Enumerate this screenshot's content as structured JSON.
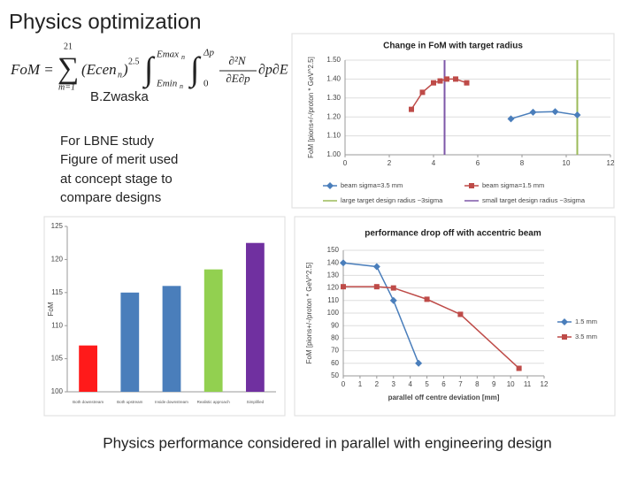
{
  "slide": {
    "title": "Physics optimization",
    "formula": {
      "lhs": "FoM =",
      "sum": "∑",
      "sum_upper": "21",
      "sum_lower": "m=1",
      "term": "(Ecen",
      "term_sub": "n",
      "term_close": ")",
      "exponent": "2.5",
      "integral1": "∫",
      "int1_upper": "Emax",
      "int1_upper_sub": "n",
      "int1_lower": "Emin",
      "int1_lower_sub": "n",
      "integral2": "∫",
      "int2_upper": "Δp",
      "int2_lower": "0",
      "numerator": "∂²N",
      "denominator": "∂E∂p",
      "differential": "∂p∂E"
    },
    "author": "B.Zwaska",
    "note": [
      "For LBNE study",
      "Figure of merit used",
      "at concept stage to",
      "compare designs"
    ],
    "footer": "Physics performance considered in parallel with engineering design"
  },
  "chart_data": [
    {
      "type": "line",
      "title": "Change in FoM with target radius",
      "y_label": "FoM [pions+/-/proton * GeV^2.5]",
      "xlim": [
        0,
        12
      ],
      "xticks": [
        0,
        2,
        4,
        6,
        8,
        10,
        12
      ],
      "ylim": [
        1,
        1.5
      ],
      "yticks": [
        {
          "value": 1,
          "label": "1.00"
        },
        {
          "value": 1.1,
          "label": "1.10"
        },
        {
          "value": 1.2,
          "label": "1.20"
        },
        {
          "value": 1.3,
          "label": "1.30"
        },
        {
          "value": 1.4,
          "label": "1.40"
        },
        {
          "value": 1.5,
          "label": "1.50"
        }
      ],
      "grid": true,
      "legend": "bottom",
      "series": [
        {
          "name": "beam sigma=3.5 mm",
          "color": "#4a7ebb",
          "marker": "diamond",
          "x": [
            7.5,
            8.5,
            9.5,
            10.5
          ],
          "values": [
            1.19,
            1.225,
            1.228,
            1.21
          ]
        },
        {
          "name": "beam sigma=1.5 mm",
          "color": "#be4b48",
          "marker": "square",
          "x": [
            3,
            3.5,
            4,
            4.3,
            4.6,
            5,
            5.5
          ],
          "values": [
            1.24,
            1.33,
            1.38,
            1.39,
            1.4,
            1.4,
            1.38
          ]
        }
      ],
      "vlines": [
        {
          "name": "large target design radius ~3sigma",
          "color": "#9bbb59",
          "x": 10.5
        },
        {
          "name": "small target design radius ~3sigma",
          "color": "#7e57a8",
          "x": 4.5
        }
      ]
    },
    {
      "type": "bar",
      "y_label": "FoM",
      "categories": [
        "Both downstream",
        "Both upstream",
        "Inside downstream",
        "Realistic approach",
        "Simplified"
      ],
      "values": [
        107,
        115,
        116,
        118.5,
        122.5
      ],
      "colors": [
        "#ff1a1a",
        "#4a7ebb",
        "#4a7ebb",
        "#92d050",
        "#7030a0"
      ],
      "ylim": [
        100,
        125
      ],
      "yticks": [
        100,
        105,
        110,
        115,
        120,
        125
      ],
      "grid": false
    },
    {
      "type": "line",
      "title": "performance drop off with accentric beam",
      "x_label": "parallel off centre deviation [mm]",
      "y_label": "FoM [pions+/-/proton * GeV^2.5]",
      "xlim": [
        0,
        12
      ],
      "xticks": [
        0,
        1,
        2,
        3,
        4,
        5,
        6,
        7,
        8,
        9,
        10,
        11,
        12
      ],
      "ylim": [
        50,
        150
      ],
      "yticks": [
        50,
        60,
        70,
        80,
        90,
        100,
        110,
        120,
        130,
        140,
        150
      ],
      "grid": true,
      "legend": "right",
      "series": [
        {
          "name": "1.5 mm",
          "color": "#4a7ebb",
          "marker": "diamond",
          "x": [
            0,
            2,
            3,
            4.5
          ],
          "values": [
            140,
            137,
            110,
            60
          ]
        },
        {
          "name": "3.5 mm",
          "color": "#be4b48",
          "marker": "square",
          "x": [
            0,
            2,
            3,
            5,
            7,
            10.5
          ],
          "values": [
            121,
            121,
            120,
            111,
            99,
            56
          ]
        }
      ]
    }
  ]
}
